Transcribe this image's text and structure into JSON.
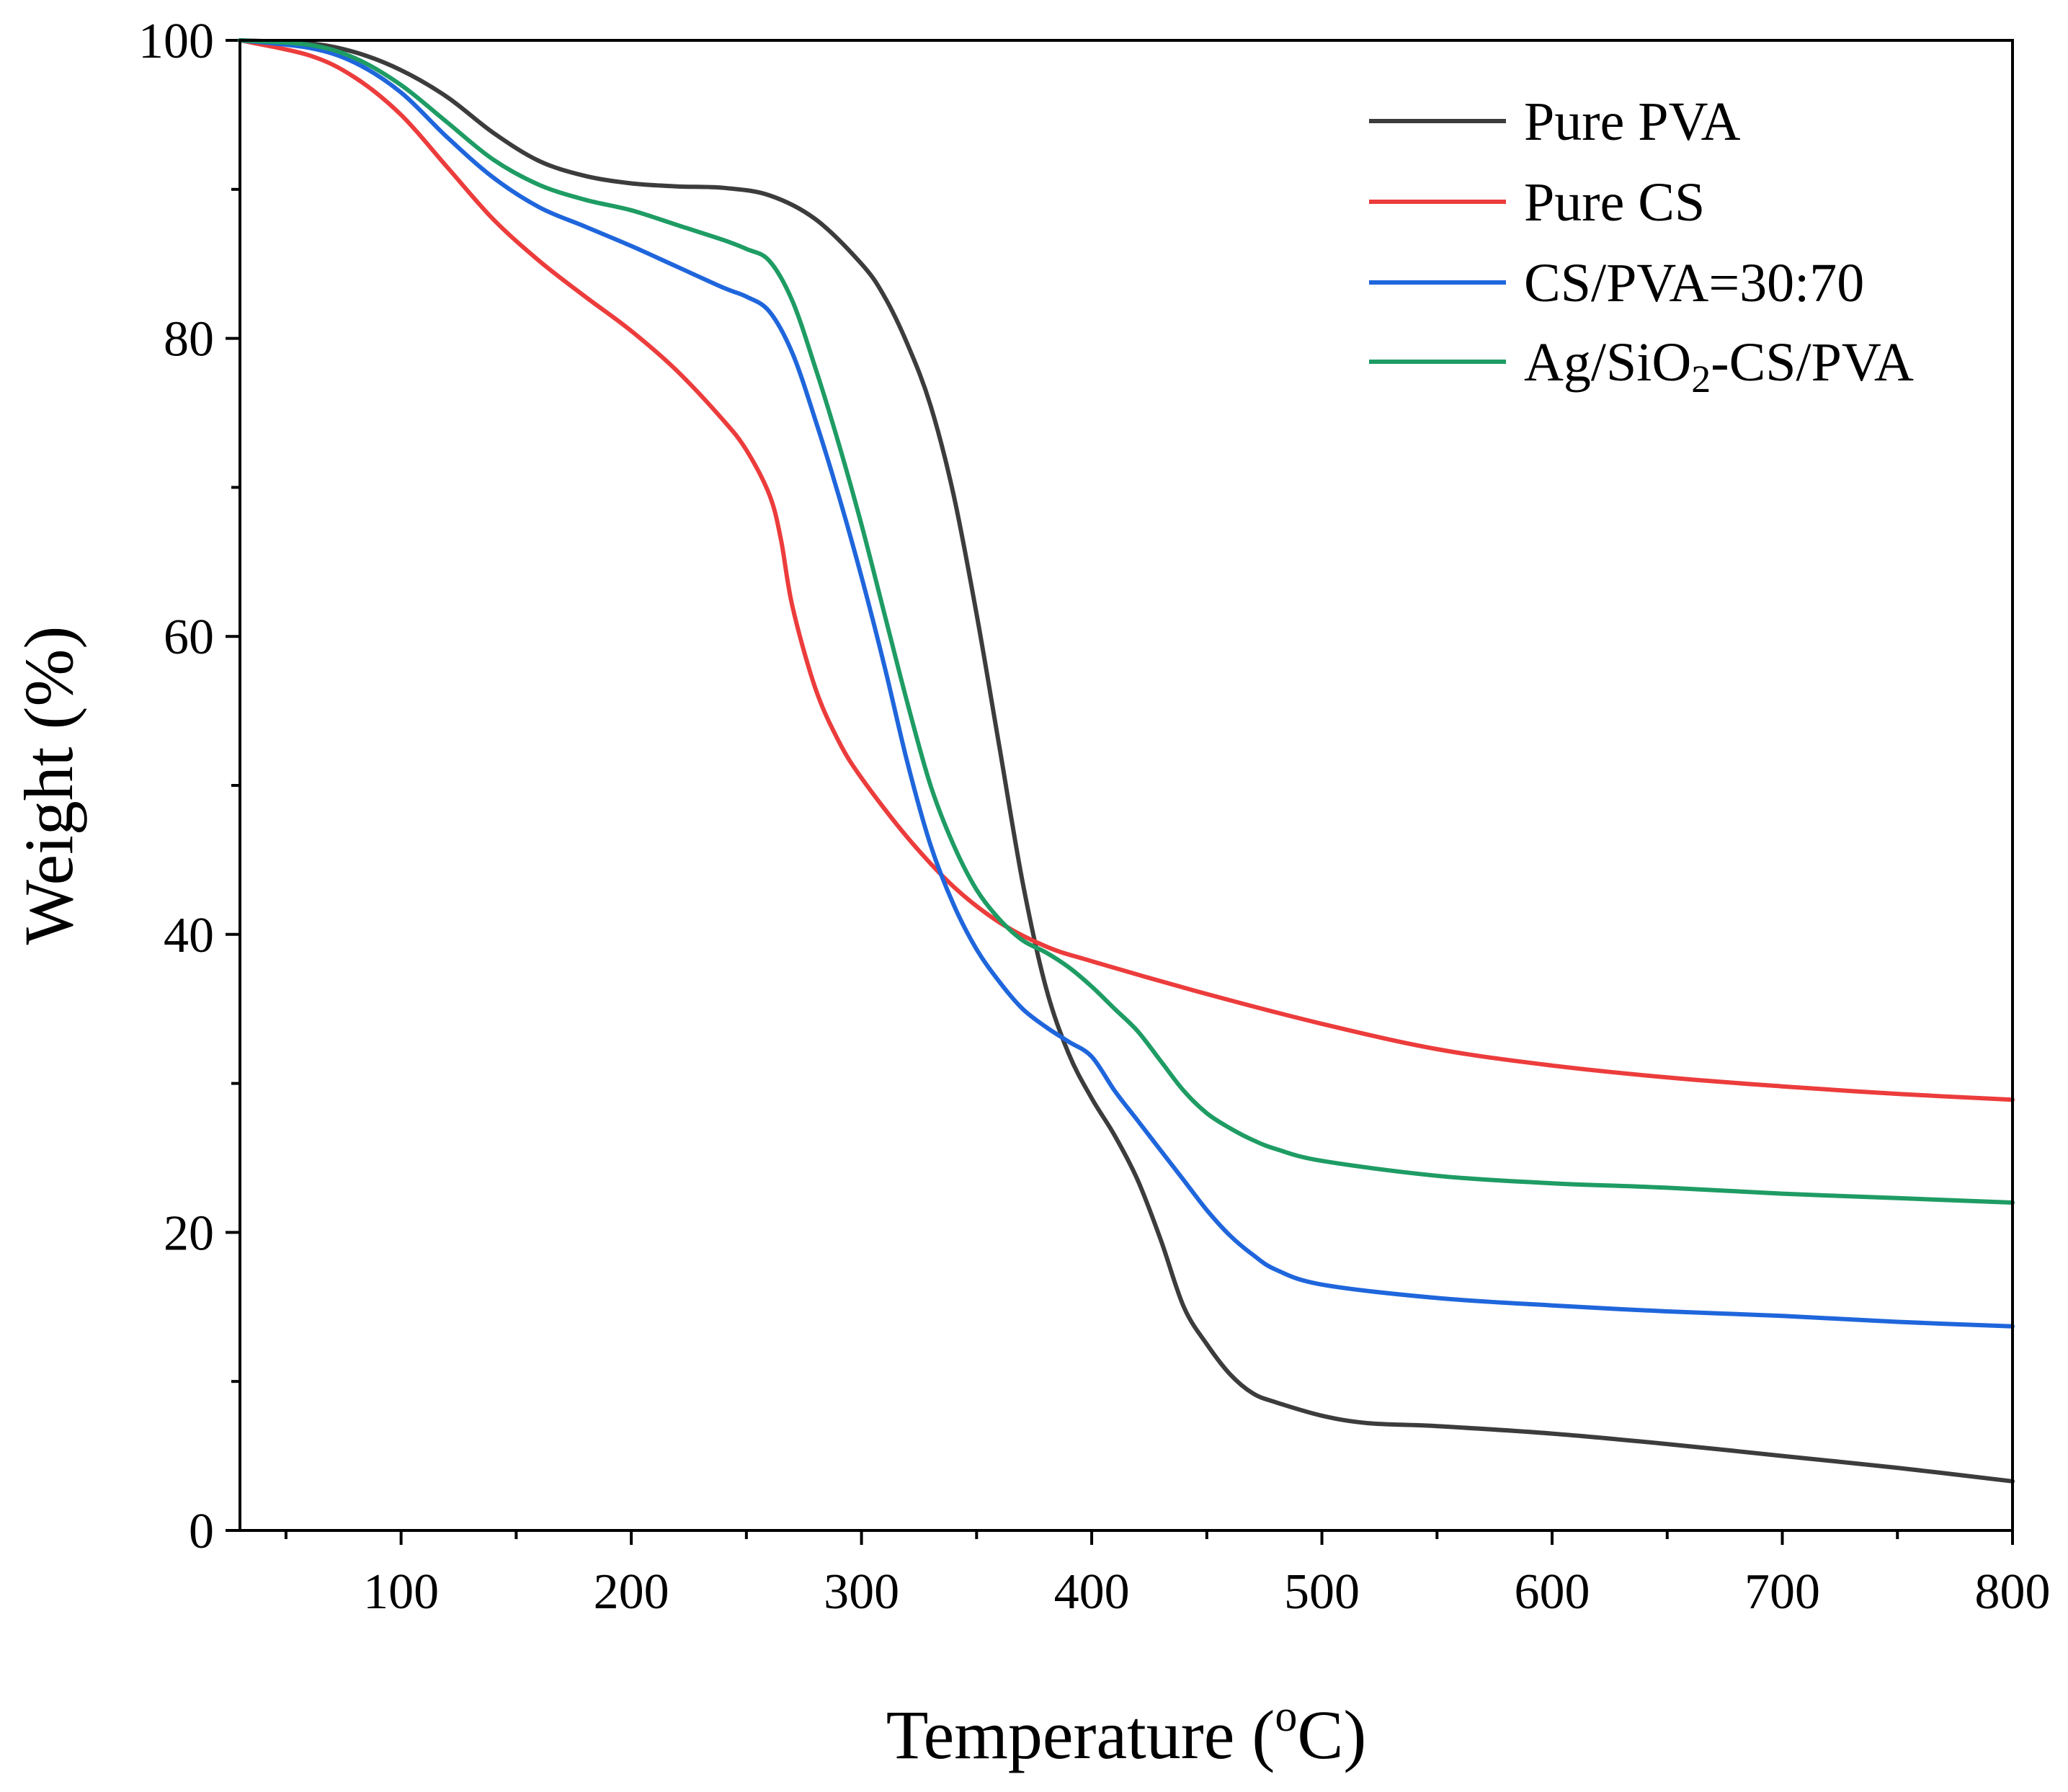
{
  "chart_data": {
    "type": "line",
    "title": "",
    "xlabel": {
      "text": "Temperature (",
      "sup": "o",
      "tail": "C)"
    },
    "ylabel": "Weight (%)",
    "xlim": [
      30,
      800
    ],
    "ylim": [
      0,
      100
    ],
    "x_ticks": [
      100,
      200,
      300,
      400,
      500,
      600,
      700,
      800
    ],
    "x_minor_ticks": [
      50,
      150,
      250,
      350,
      450,
      550,
      650,
      750
    ],
    "y_ticks": [
      0,
      20,
      40,
      60,
      80,
      100
    ],
    "y_minor_ticks": [
      10,
      30,
      50,
      70,
      90
    ],
    "legend_position": "top-right",
    "grid": false,
    "series": [
      {
        "name": "Pure PVA",
        "label_parts": [
          {
            "text": "Pure PVA"
          }
        ],
        "color": "#3c3c3c",
        "x": [
          30,
          60,
          80,
          100,
          120,
          140,
          160,
          180,
          200,
          220,
          240,
          260,
          280,
          300,
          310,
          320,
          330,
          340,
          350,
          360,
          370,
          380,
          390,
          400,
          410,
          420,
          430,
          440,
          450,
          460,
          470,
          480,
          500,
          520,
          550,
          600,
          650,
          700,
          750,
          800
        ],
        "y": [
          100,
          99.8,
          99.2,
          98.0,
          96.2,
          93.8,
          91.9,
          90.9,
          90.4,
          90.2,
          90.1,
          89.6,
          88.0,
          85.0,
          82.8,
          79.6,
          75.5,
          69.5,
          61.5,
          52.5,
          43.5,
          36.5,
          32.0,
          29.0,
          26.5,
          23.5,
          19.5,
          15.0,
          12.5,
          10.5,
          9.2,
          8.6,
          7.7,
          7.2,
          7.0,
          6.5,
          5.8,
          5.0,
          4.2,
          3.3
        ]
      },
      {
        "name": "Pure CS",
        "label_parts": [
          {
            "text": "Pure CS"
          }
        ],
        "color": "#ec3c3c",
        "x": [
          30,
          60,
          80,
          100,
          120,
          140,
          160,
          180,
          200,
          220,
          240,
          250,
          260,
          265,
          270,
          280,
          290,
          300,
          320,
          340,
          360,
          380,
          400,
          450,
          500,
          550,
          600,
          650,
          700,
          750,
          800
        ],
        "y": [
          100,
          99.0,
          97.5,
          95.0,
          91.5,
          88.0,
          85.2,
          82.8,
          80.5,
          77.8,
          74.5,
          72.5,
          69.5,
          66.5,
          62.0,
          56.5,
          53.0,
          50.5,
          46.5,
          43.2,
          40.8,
          39.2,
          38.2,
          36.0,
          34.0,
          32.3,
          31.2,
          30.4,
          29.8,
          29.3,
          28.9
        ]
      },
      {
        "name": "CS/PVA=30:70",
        "label_parts": [
          {
            "text": "CS/PVA=30:70"
          }
        ],
        "color": "#1f66dc",
        "x": [
          30,
          60,
          80,
          100,
          120,
          140,
          160,
          180,
          200,
          220,
          240,
          250,
          260,
          270,
          280,
          290,
          300,
          310,
          320,
          330,
          340,
          350,
          360,
          370,
          380,
          390,
          400,
          410,
          420,
          430,
          440,
          450,
          460,
          470,
          480,
          500,
          550,
          600,
          650,
          700,
          750,
          800
        ],
        "y": [
          100,
          99.5,
          98.5,
          96.5,
          93.5,
          90.8,
          88.8,
          87.5,
          86.2,
          84.8,
          83.4,
          82.8,
          81.8,
          79.0,
          74.5,
          69.5,
          64.0,
          58.0,
          51.5,
          46.0,
          42.0,
          39.0,
          36.8,
          35.0,
          33.8,
          32.8,
          31.8,
          29.5,
          27.5,
          25.5,
          23.5,
          21.5,
          19.8,
          18.5,
          17.5,
          16.5,
          15.6,
          15.1,
          14.7,
          14.4,
          14.0,
          13.7
        ]
      },
      {
        "name": "Ag/SiO2-CS/PVA",
        "label_parts": [
          {
            "text": "Ag/SiO"
          },
          {
            "text": "2",
            "sub": true
          },
          {
            "text": "-CS/PVA"
          }
        ],
        "color": "#1e9c64",
        "x": [
          30,
          60,
          80,
          100,
          120,
          140,
          160,
          180,
          200,
          220,
          240,
          250,
          260,
          270,
          280,
          290,
          300,
          310,
          320,
          330,
          340,
          350,
          360,
          370,
          380,
          390,
          400,
          410,
          420,
          430,
          440,
          450,
          460,
          470,
          480,
          500,
          550,
          600,
          650,
          700,
          750,
          800
        ],
        "y": [
          100,
          99.7,
          98.8,
          97.0,
          94.5,
          92.0,
          90.3,
          89.3,
          88.6,
          87.6,
          86.6,
          86.0,
          85.2,
          82.5,
          78.0,
          73.0,
          67.5,
          61.5,
          55.5,
          50.0,
          46.0,
          43.0,
          41.0,
          39.6,
          38.8,
          37.8,
          36.5,
          35.0,
          33.5,
          31.5,
          29.5,
          28.0,
          27.0,
          26.2,
          25.6,
          24.8,
          23.8,
          23.3,
          23.0,
          22.6,
          22.3,
          22.0
        ]
      }
    ]
  }
}
